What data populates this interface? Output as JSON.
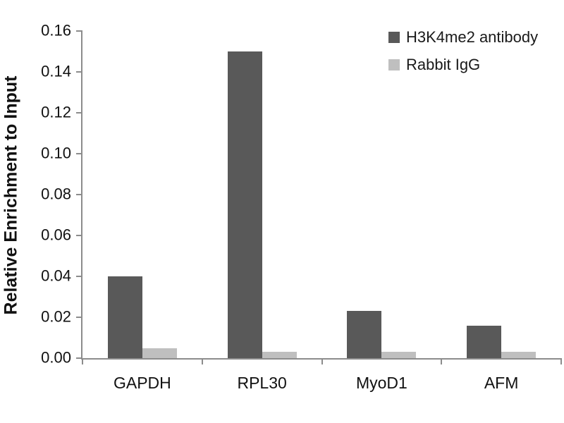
{
  "chart_data": {
    "type": "bar",
    "title": "",
    "xlabel": "",
    "ylabel": "Relative Enrichment to Input",
    "categories": [
      "GAPDH",
      "RPL30",
      "MyoD1",
      "AFM"
    ],
    "series": [
      {
        "name": "H3K4me2 antibody",
        "color": "#595959",
        "values": [
          0.04,
          0.15,
          0.023,
          0.016
        ]
      },
      {
        "name": "Rabbit IgG",
        "color": "#bfbfbf",
        "values": [
          0.005,
          0.003,
          0.003,
          0.003
        ]
      }
    ],
    "ylim": [
      0,
      0.16
    ],
    "ytick_labels": [
      "0.00",
      "0.02",
      "0.04",
      "0.06",
      "0.08",
      "0.10",
      "0.12",
      "0.14",
      "0.16"
    ],
    "grid": false,
    "legend_position": "top-right",
    "axis_color": "#8c8c8c",
    "text_color": "#111111",
    "background_color": "#ffffff"
  }
}
